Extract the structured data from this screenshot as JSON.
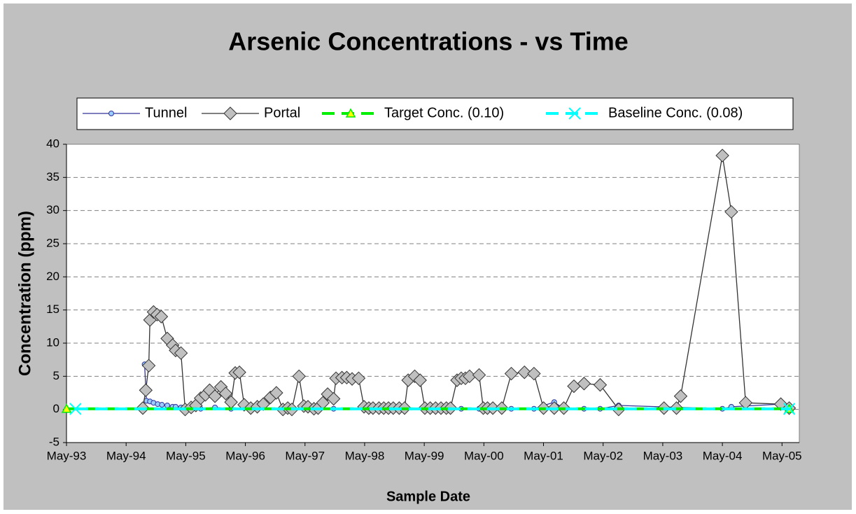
{
  "chart_data": {
    "type": "line",
    "title": "Arsenic Concentrations - vs Time",
    "xlabel": "Sample Date",
    "ylabel": "Concentration (ppm)",
    "xlim": [
      1993.33,
      2005.62
    ],
    "ylim": [
      -5,
      40
    ],
    "yticks": [
      -5,
      0,
      5,
      10,
      15,
      20,
      25,
      30,
      35,
      40
    ],
    "xticks": [
      {
        "value": 1993.33,
        "label": "May-93"
      },
      {
        "value": 1994.33,
        "label": "May-94"
      },
      {
        "value": 1995.33,
        "label": "May-95"
      },
      {
        "value": 1996.33,
        "label": "May-96"
      },
      {
        "value": 1997.33,
        "label": "May-97"
      },
      {
        "value": 1998.33,
        "label": "May-98"
      },
      {
        "value": 1999.33,
        "label": "May-99"
      },
      {
        "value": 2000.33,
        "label": "May-00"
      },
      {
        "value": 2001.33,
        "label": "May-01"
      },
      {
        "value": 2002.33,
        "label": "May-02"
      },
      {
        "value": 2003.33,
        "label": "May-03"
      },
      {
        "value": 2004.33,
        "label": "May-04"
      },
      {
        "value": 2005.33,
        "label": "May-05"
      }
    ],
    "grid": true,
    "legend": "top",
    "series": [
      {
        "name": "Tunnel",
        "color": "#333399",
        "marker": "circle",
        "dashed": false,
        "x": [
          1994.64,
          1994.67,
          1994.73,
          1994.79,
          1994.86,
          1994.93,
          1995.02,
          1995.11,
          1995.16,
          1995.25,
          1995.32,
          1995.58,
          1995.82,
          1996.09,
          1996.42,
          1996.96,
          1997.38,
          1997.81,
          1998.32,
          1998.91,
          1999.34,
          1999.95,
          2000.25,
          2000.79,
          2001.17,
          2001.51,
          2001.67,
          2002.01,
          2002.28,
          2002.59,
          2004.33,
          2004.48,
          2005.31
        ],
        "values": [
          6.8,
          1.3,
          1.2,
          1.0,
          0.8,
          0.7,
          0.6,
          0.4,
          0.4,
          0.3,
          0.1,
          0.1,
          0.3,
          0.1,
          0.1,
          0.1,
          0.2,
          0.1,
          0.1,
          0.1,
          0.1,
          0.1,
          0.1,
          0.1,
          0.1,
          1.1,
          0.1,
          0.1,
          0.1,
          0.6,
          0.1,
          0.4,
          0.8
        ]
      },
      {
        "name": "Portal",
        "color": "#333333",
        "marker": "diamond",
        "dashed": false,
        "x": [
          1994.61,
          1994.66,
          1994.71,
          1994.73,
          1994.79,
          1994.85,
          1994.92,
          1995.02,
          1995.11,
          1995.16,
          1995.25,
          1995.32,
          1995.42,
          1995.5,
          1995.58,
          1995.66,
          1995.73,
          1995.82,
          1995.92,
          1996.0,
          1996.09,
          1996.16,
          1996.23,
          1996.31,
          1996.42,
          1996.53,
          1996.63,
          1996.75,
          1996.85,
          1996.96,
          1997.04,
          1997.11,
          1997.23,
          1997.31,
          1997.38,
          1997.48,
          1997.55,
          1997.63,
          1997.71,
          1997.81,
          1997.85,
          1997.95,
          1998.03,
          1998.12,
          1998.23,
          1998.32,
          1998.4,
          1998.47,
          1998.57,
          1998.65,
          1998.73,
          1998.81,
          1998.91,
          1999.0,
          1999.06,
          1999.17,
          1999.26,
          1999.34,
          1999.43,
          1999.52,
          1999.61,
          1999.7,
          1999.77,
          1999.88,
          1999.95,
          2000.02,
          2000.09,
          2000.25,
          2000.32,
          2000.39,
          2000.48,
          2000.63,
          2000.79,
          2001.01,
          2001.17,
          2001.33,
          2001.51,
          2001.67,
          2001.84,
          2002.01,
          2002.28,
          2002.59,
          2003.35,
          2003.56,
          2003.63,
          2004.33,
          2004.48,
          2004.72,
          2005.31,
          2005.45
        ],
        "values": [
          0.2,
          2.9,
          6.6,
          13.5,
          14.7,
          14.3,
          14.0,
          10.7,
          9.7,
          8.9,
          8.5,
          0.0,
          0.3,
          0.6,
          1.7,
          2.2,
          2.9,
          2.0,
          3.4,
          2.4,
          1.1,
          5.5,
          5.6,
          0.7,
          0.2,
          0.4,
          0.8,
          1.8,
          2.5,
          0.0,
          0.2,
          0.0,
          5.0,
          0.5,
          0.4,
          0.1,
          0.2,
          1.0,
          2.3,
          1.6,
          4.7,
          4.8,
          4.8,
          4.6,
          4.7,
          0.4,
          0.2,
          0.2,
          0.2,
          0.2,
          0.2,
          0.2,
          0.2,
          0.2,
          4.4,
          5.0,
          4.4,
          0.2,
          0.2,
          0.2,
          0.2,
          0.2,
          0.2,
          4.4,
          4.7,
          4.7,
          5.0,
          5.2,
          0.2,
          0.2,
          0.2,
          0.2,
          5.4,
          5.6,
          5.4,
          0.2,
          0.2,
          0.2,
          3.5,
          3.9,
          3.7,
          0.0,
          0.2,
          0.2,
          2.0,
          38.3,
          29.8,
          1.0,
          0.8,
          0.2
        ]
      },
      {
        "name": "Target Conc. (0.10)",
        "color": "#00ee00",
        "marker": "triangle",
        "dashed": true,
        "x": [
          1993.33,
          2005.45
        ],
        "values": [
          0.1,
          0.1
        ]
      },
      {
        "name": "Baseline Conc. (0.08)",
        "color": "#00ffff",
        "marker": "cross",
        "dashed": true,
        "x": [
          1993.48,
          2005.45
        ],
        "values": [
          0.08,
          0.08
        ]
      }
    ]
  }
}
